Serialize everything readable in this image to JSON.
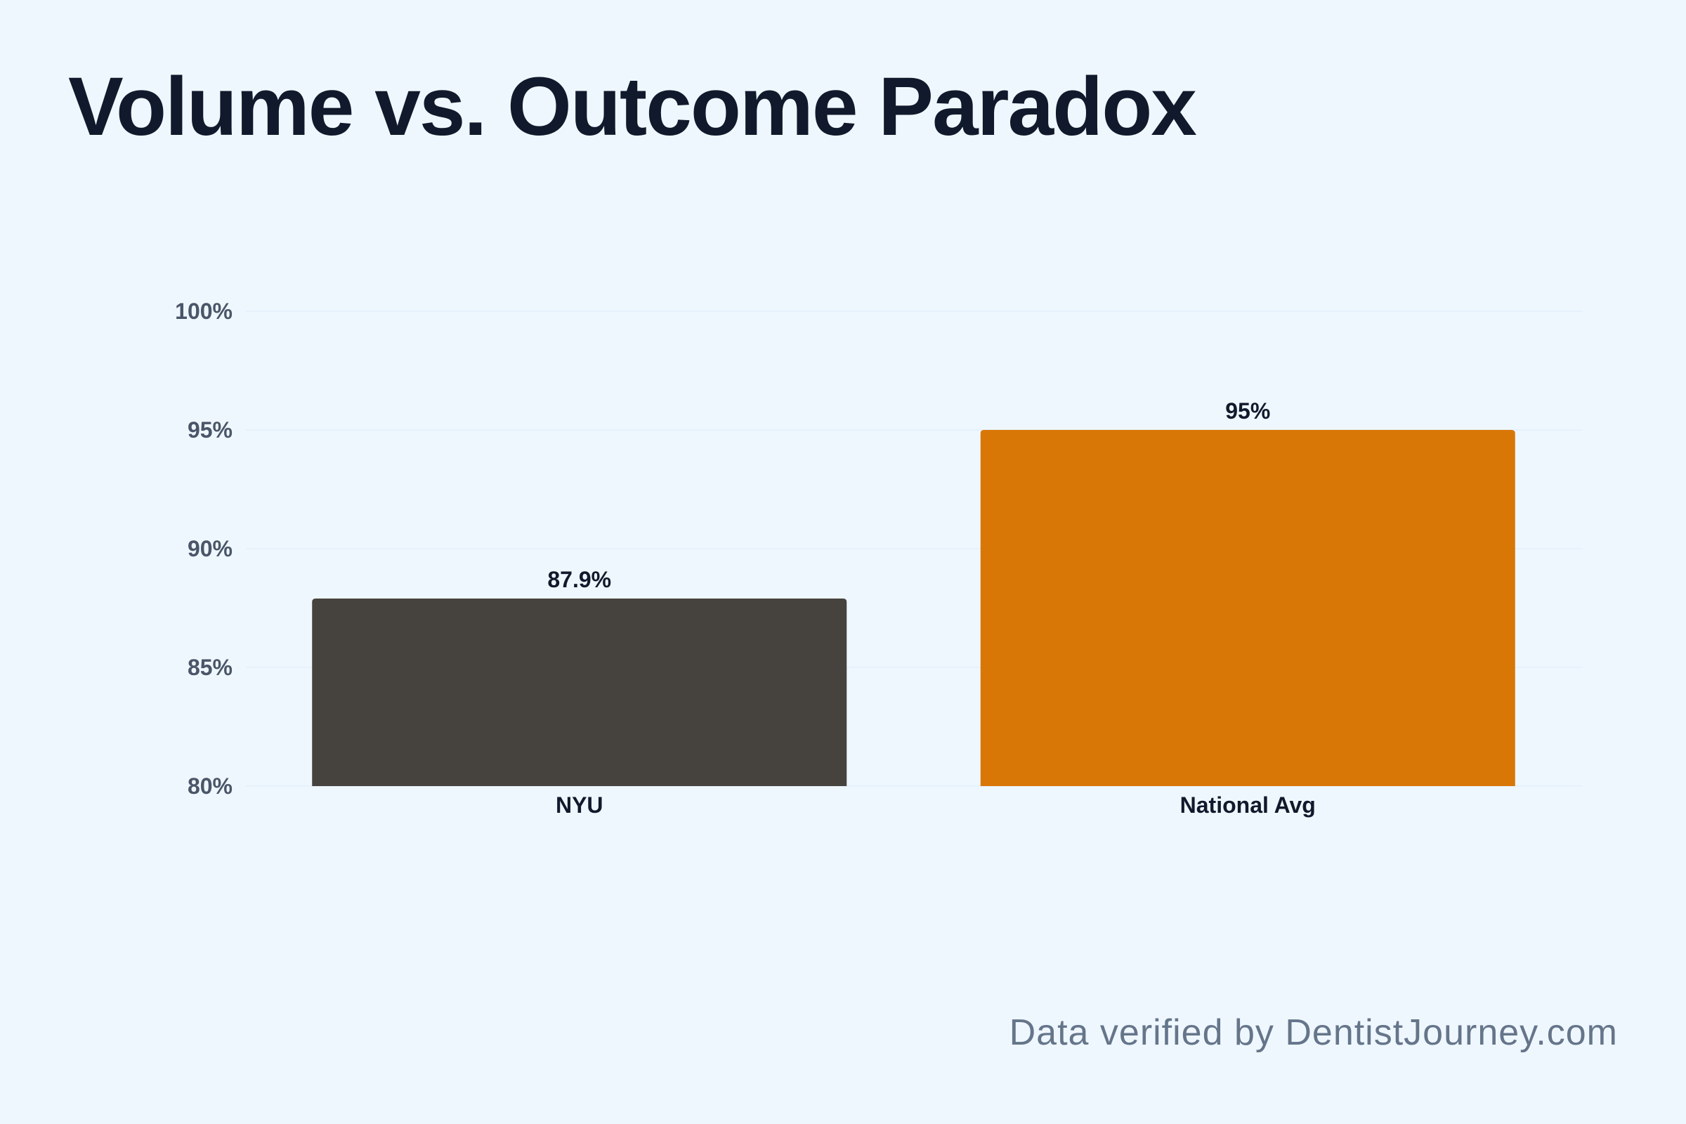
{
  "title": "Volume vs. Outcome Paradox",
  "footer": "Data verified by DentistJourney.com",
  "chart_data": {
    "type": "bar",
    "categories": [
      "NYU",
      "National Avg"
    ],
    "values": [
      87.9,
      95
    ],
    "data_labels": [
      "87.9%",
      "95%"
    ],
    "colors": [
      "#46423e",
      "#d97706"
    ],
    "ylim": [
      80,
      100
    ],
    "y_ticks": [
      80,
      85,
      90,
      95,
      100
    ],
    "y_tick_labels": [
      "80%",
      "85%",
      "90%",
      "95%",
      "100%"
    ],
    "grid": true,
    "legend": "none"
  }
}
